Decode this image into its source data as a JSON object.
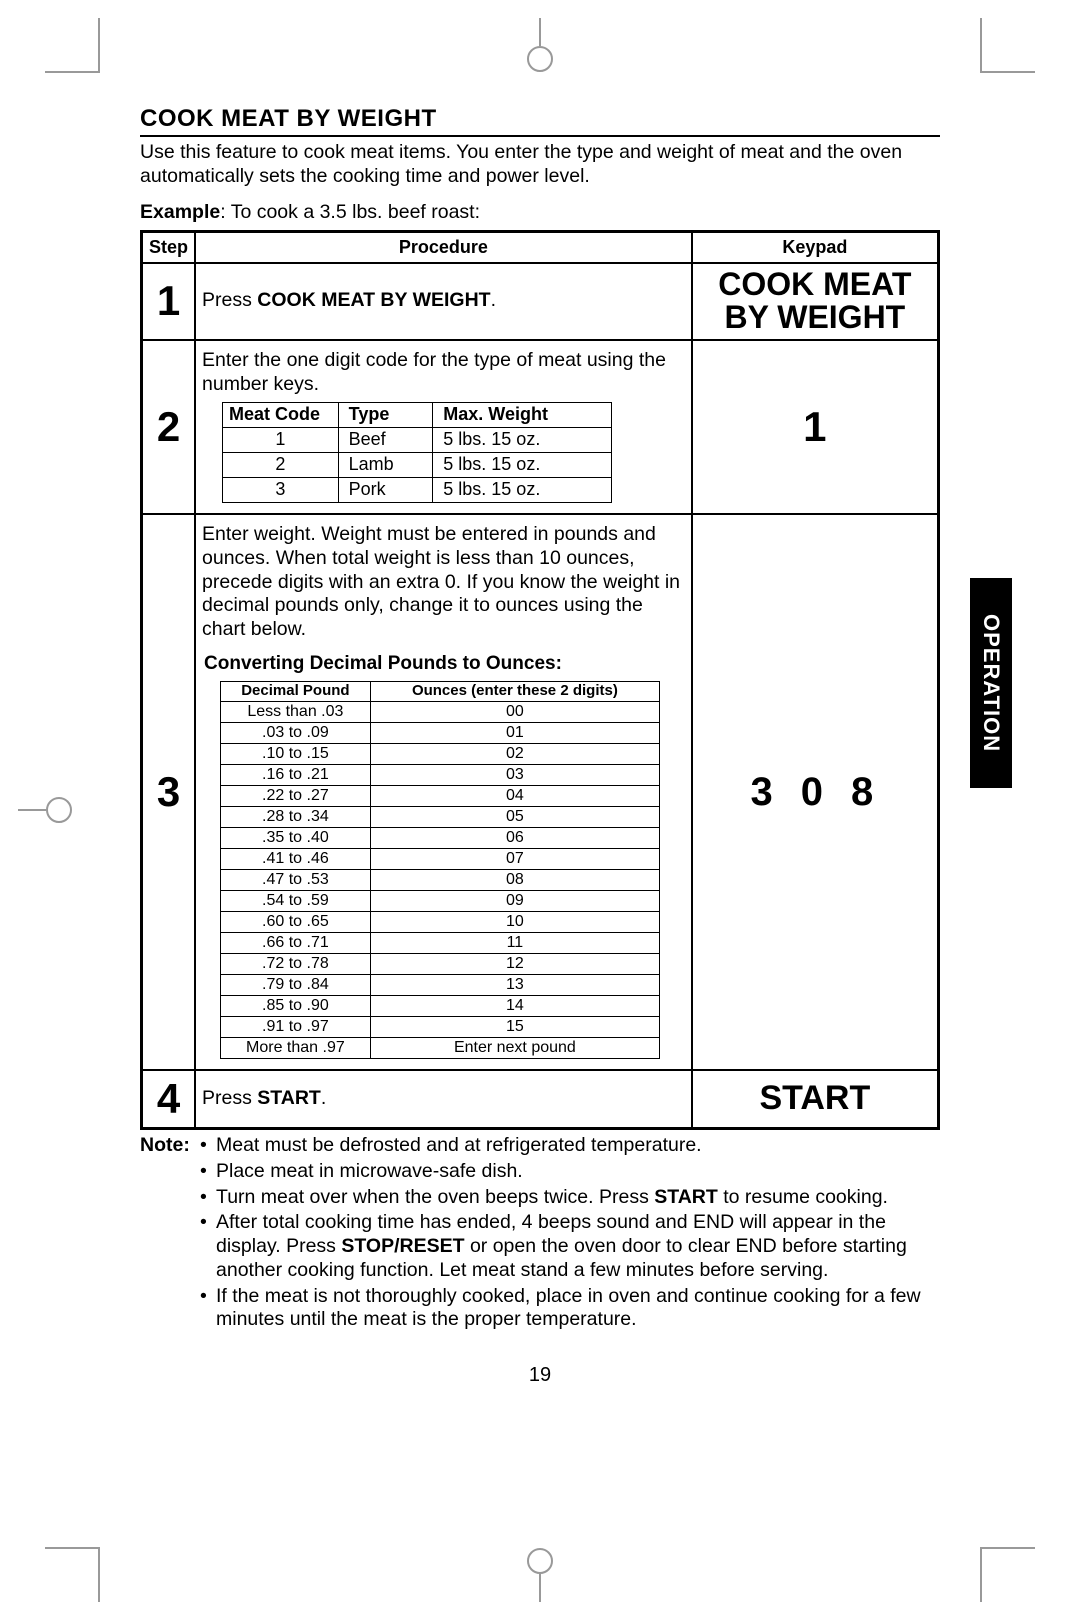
{
  "colors": {
    "text": "#000000",
    "bg": "#ffffff",
    "tab_bg": "#000000",
    "tab_fg": "#ffffff"
  },
  "side_tab": "OPERATION",
  "title": "COOK MEAT BY WEIGHT",
  "intro": "Use this feature to cook meat items.  You enter the type and weight of meat and the oven automatically sets the cooking time and power level.",
  "example_label": "Example",
  "example_text": ": To cook a 3.5 lbs. beef roast:",
  "table_headers": {
    "step": "Step",
    "procedure": "Procedure",
    "keypad": "Keypad"
  },
  "steps": {
    "s1": {
      "num": "1",
      "proc_pre": "Press ",
      "proc_bold": "COOK MEAT BY WEIGHT",
      "proc_post": ".",
      "keypad_l1": "COOK MEAT",
      "keypad_l2": "BY WEIGHT"
    },
    "s2": {
      "num": "2",
      "intro": "Enter the one digit code for the type of meat using the number keys.",
      "keypad": "1",
      "meat_headers": {
        "code": "Meat Code",
        "type": "Type",
        "max": "Max. Weight"
      },
      "meat_rows": [
        {
          "code": "1",
          "type": "Beef",
          "max": "5 lbs. 15 oz."
        },
        {
          "code": "2",
          "type": "Lamb",
          "max": "5 lbs. 15 oz."
        },
        {
          "code": "3",
          "type": "Pork",
          "max": "5 lbs. 15 oz."
        }
      ]
    },
    "s3": {
      "num": "3",
      "intro": "Enter weight.  Weight must be entered in pounds and ounces.  When total weight is less than 10 ounces, precede digits with an extra 0. If you know the weight in decimal pounds only, change it to ounces using the chart below.",
      "conv_title": "Converting Decimal Pounds to Ounces",
      "keypad": "308",
      "conv_headers": {
        "dp": "Decimal Pound",
        "oz": "Ounces (enter these 2 digits)"
      },
      "conv_rows": [
        {
          "dp": "Less than .03",
          "oz": "00"
        },
        {
          "dp": ".03 to .09",
          "oz": "01"
        },
        {
          "dp": ".10 to .15",
          "oz": "02"
        },
        {
          "dp": ".16 to .21",
          "oz": "03"
        },
        {
          "dp": ".22 to .27",
          "oz": "04"
        },
        {
          "dp": ".28 to .34",
          "oz": "05"
        },
        {
          "dp": ".35 to .40",
          "oz": "06"
        },
        {
          "dp": ".41 to .46",
          "oz": "07"
        },
        {
          "dp": ".47 to .53",
          "oz": "08"
        },
        {
          "dp": ".54 to .59",
          "oz": "09"
        },
        {
          "dp": ".60 to .65",
          "oz": "10"
        },
        {
          "dp": ".66 to .71",
          "oz": "11"
        },
        {
          "dp": ".72 to .78",
          "oz": "12"
        },
        {
          "dp": ".79 to .84",
          "oz": "13"
        },
        {
          "dp": ".85 to .90",
          "oz": "14"
        },
        {
          "dp": ".91 to .97",
          "oz": "15"
        },
        {
          "dp": "More than .97",
          "oz": "Enter next pound"
        }
      ]
    },
    "s4": {
      "num": "4",
      "proc_pre": "Press ",
      "proc_bold": "START",
      "proc_post": ".",
      "keypad": "START"
    }
  },
  "notes_label": "Note",
  "notes": [
    "Meat must be defrosted and at refrigerated temperature.",
    "Place meat in microwave-safe dish.",
    "Turn meat over when the oven beeps twice.  Press <b>START</b> to resume cooking.",
    "After total cooking time has ended, 4 beeps sound and END will appear in the display.  Press <b>STOP/RESET</b> or open the oven door to clear END before starting another cooking function.  Let meat stand a few minutes before serving.",
    "If the meat is not thoroughly cooked, place in oven and continue cooking for a few minutes until the meat is the proper temperature."
  ],
  "page_number": "19"
}
